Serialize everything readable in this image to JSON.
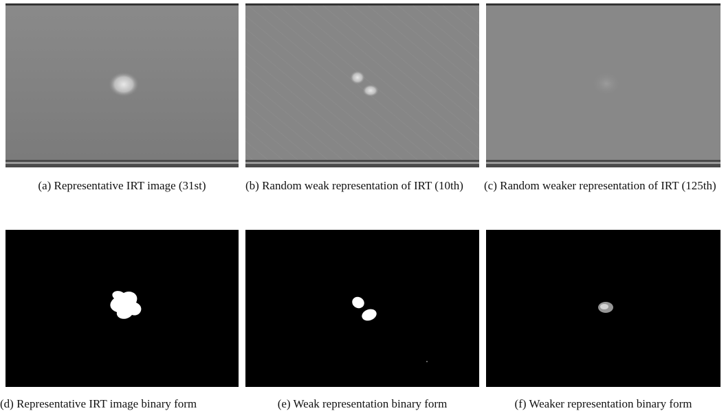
{
  "figure": {
    "subfigures": [
      {
        "caption": "(a) Representative IRT image (31st)"
      },
      {
        "caption": "(b) Random weak representation of IRT (10th)"
      },
      {
        "caption": "(c) Random weaker representation of IRT (125th)"
      },
      {
        "caption": "(d) Representative IRT image binary form"
      },
      {
        "caption": "(e) Weak representation binary form"
      },
      {
        "caption": "(f) Weaker representation binary form"
      }
    ]
  }
}
